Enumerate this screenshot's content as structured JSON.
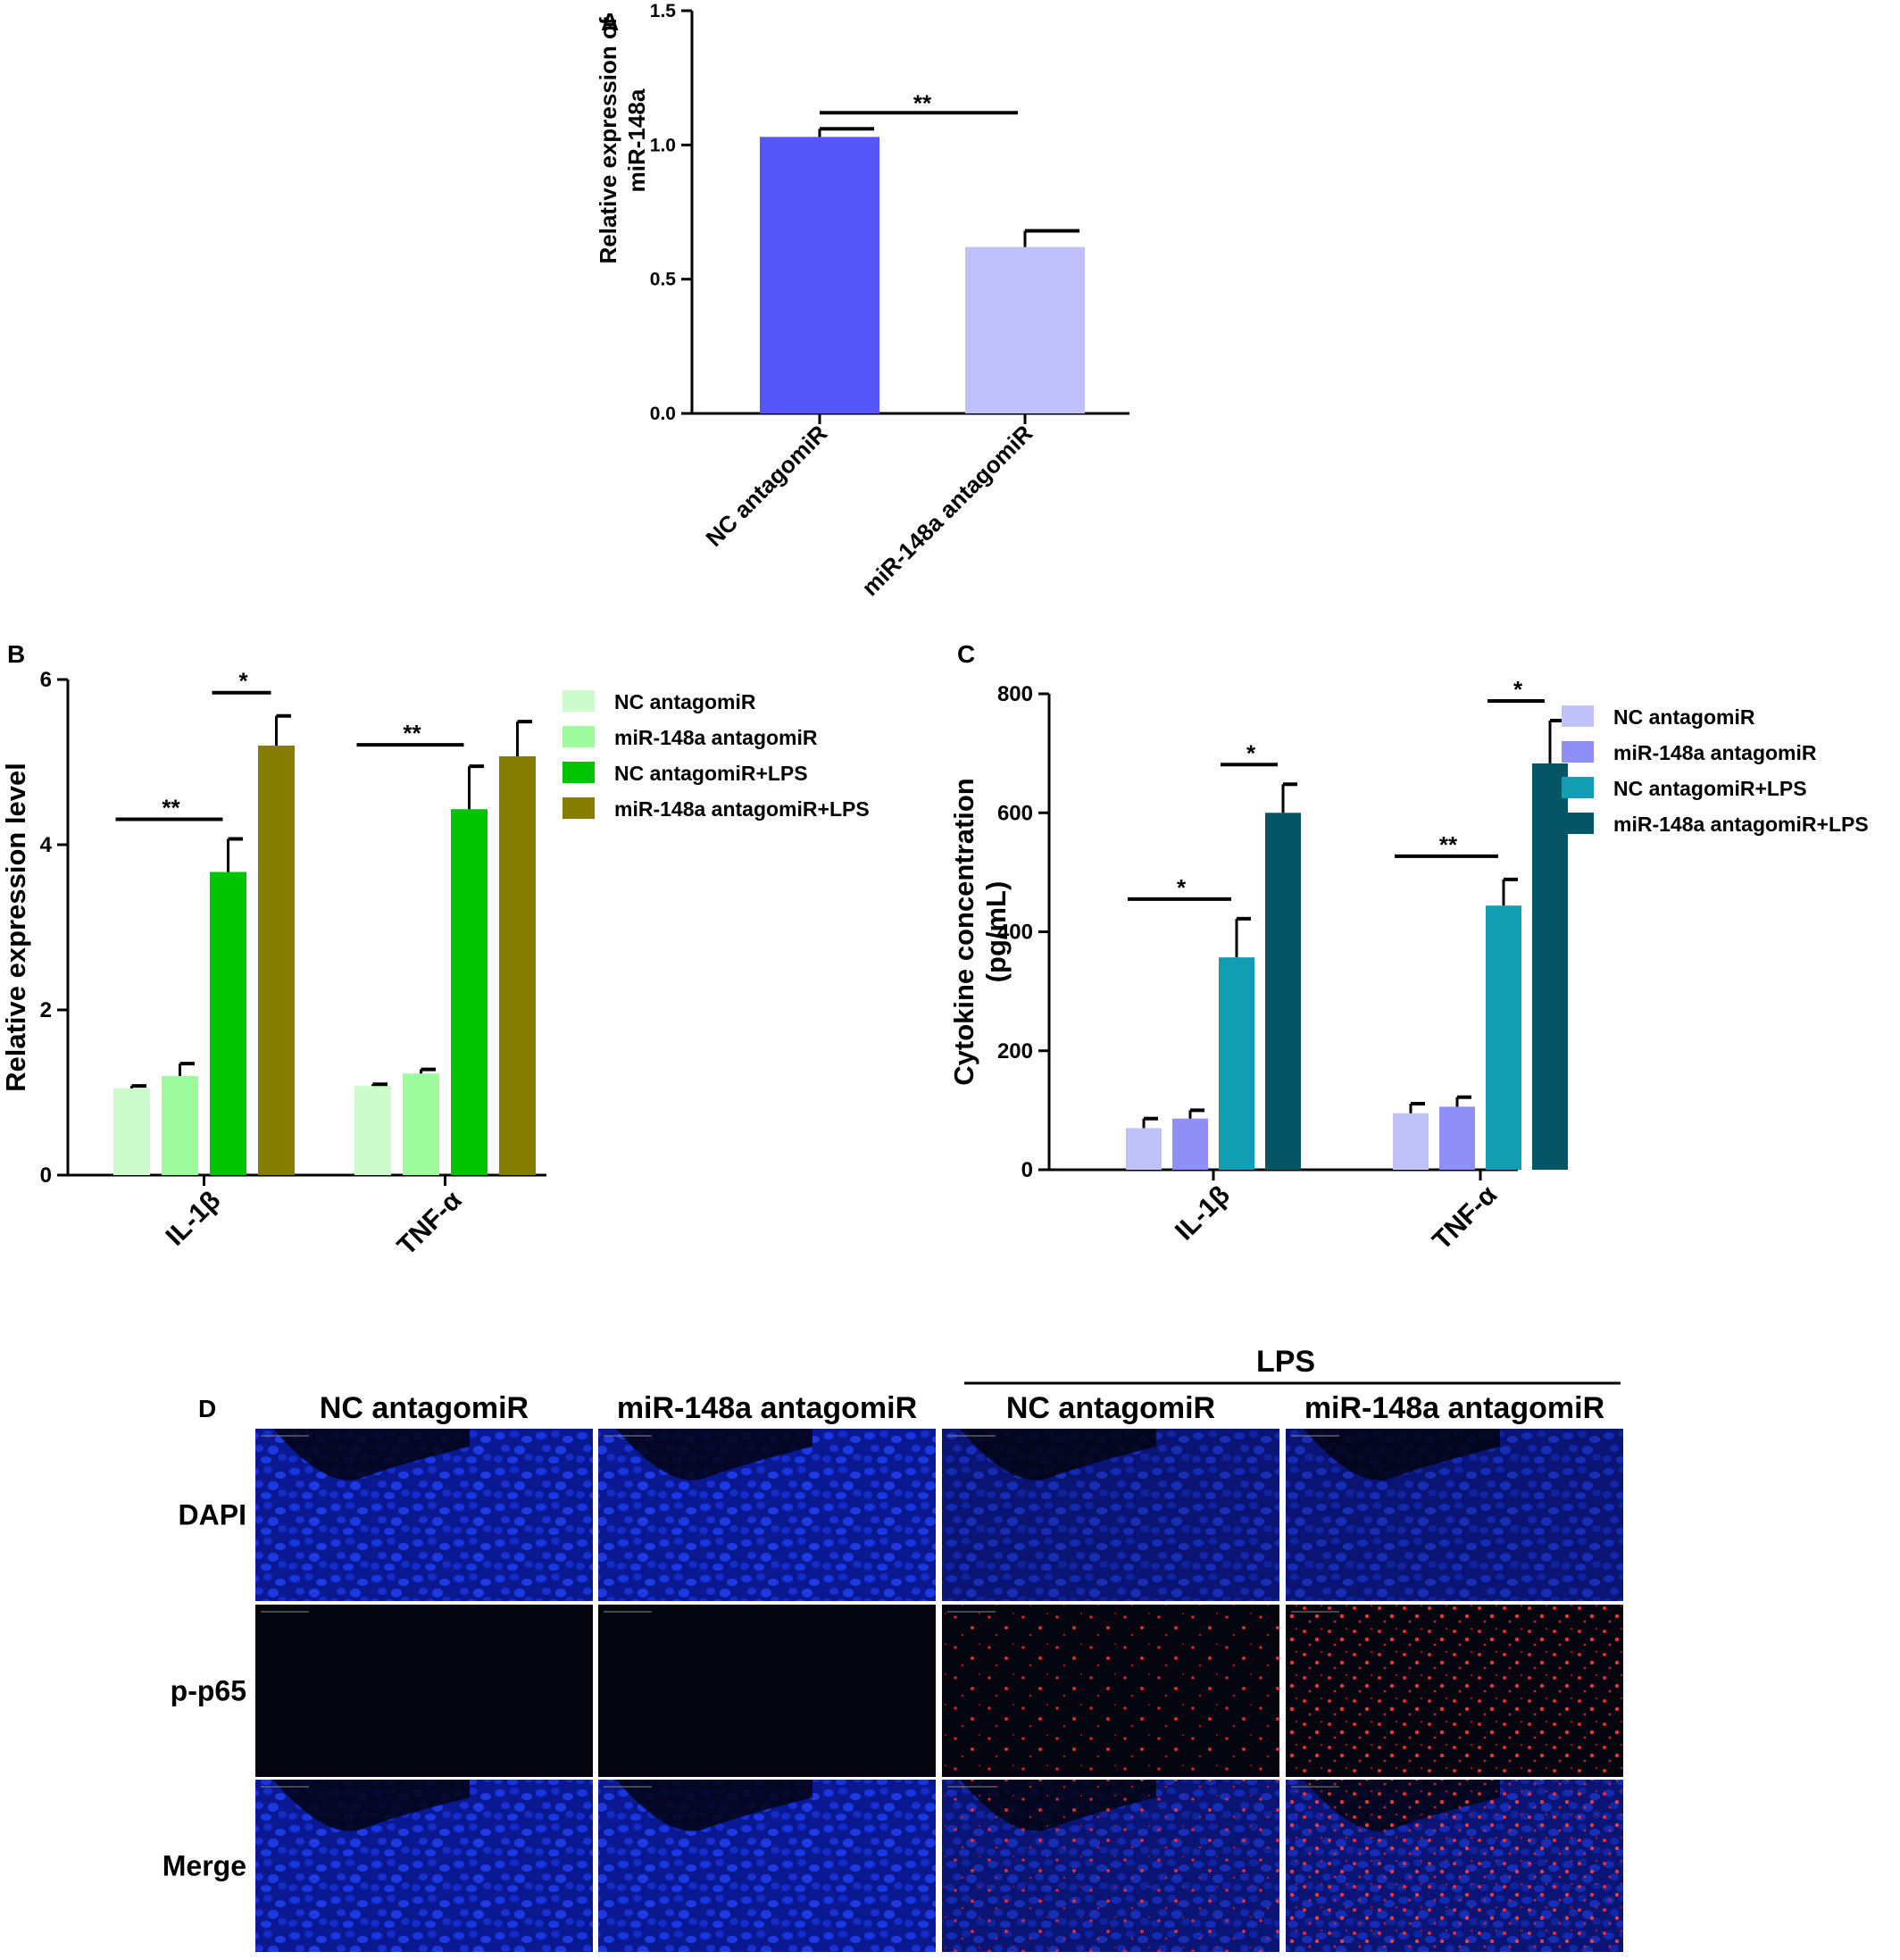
{
  "chart_data": [
    {
      "panel": "A",
      "type": "bar",
      "categories": [
        "NC antagomiR",
        "miR-148a antagomiR"
      ],
      "values": [
        1.03,
        0.62
      ],
      "errors": [
        0.03,
        0.06
      ],
      "colors": [
        "#5555fa",
        "#c0c0fc"
      ],
      "ylabel": [
        "Relative expression of",
        "miR-148a"
      ],
      "ylim": [
        0,
        1.5
      ],
      "yticks": [
        "0.0",
        "0.5",
        "1.0",
        "1.5"
      ],
      "significance": [
        {
          "from": 0,
          "to": 1,
          "label": "**"
        }
      ]
    },
    {
      "panel": "B",
      "type": "bar",
      "categories": [
        "IL-1β",
        "TNF-α"
      ],
      "series": [
        {
          "name": "NC antagomiR",
          "values": [
            1.05,
            1.08
          ],
          "errors": [
            0.03,
            0.02
          ],
          "color": "#ccfccc"
        },
        {
          "name": "miR-148a antagomiR",
          "values": [
            1.2,
            1.23
          ],
          "errors": [
            0.15,
            0.05
          ],
          "color": "#9efc9e"
        },
        {
          "name": "NC antagomiR+LPS",
          "values": [
            3.67,
            4.43
          ],
          "errors": [
            0.4,
            0.52
          ],
          "color": "#00c400"
        },
        {
          "name": "miR-148a antagomiR+LPS",
          "values": [
            5.2,
            5.07
          ],
          "errors": [
            0.36,
            0.42
          ],
          "color": "#847d00"
        }
      ],
      "ylabel": "Relative expression level",
      "ylim": [
        0,
        6
      ],
      "yticks": [
        "0",
        "2",
        "4",
        "6"
      ],
      "significance": [
        {
          "category": 0,
          "from": 0,
          "to": 2,
          "label": "**"
        },
        {
          "category": 0,
          "from": 2,
          "to": 3,
          "label": "*"
        },
        {
          "category": 1,
          "from": 0,
          "to": 2,
          "label": "**"
        }
      ]
    },
    {
      "panel": "C",
      "type": "bar",
      "categories": [
        "IL-1β",
        "TNF-α"
      ],
      "series": [
        {
          "name": "NC antagomiR",
          "values": [
            70,
            95
          ],
          "errors": [
            16,
            16
          ],
          "color": "#c2c2fb"
        },
        {
          "name": "miR-148a antagomiR",
          "values": [
            86,
            106
          ],
          "errors": [
            14,
            16
          ],
          "color": "#8f8ff7"
        },
        {
          "name": "NC antagomiR+LPS",
          "values": [
            357,
            444
          ],
          "errors": [
            65,
            44
          ],
          "color": "#139db3"
        },
        {
          "name": "miR-148a antagomiR+LPS",
          "values": [
            600,
            683
          ],
          "errors": [
            48,
            72
          ],
          "color": "#055567"
        }
      ],
      "ylabel": [
        "Cytokine concentration",
        "(pg/mL)"
      ],
      "ylim": [
        0,
        800
      ],
      "yticks": [
        "0",
        "200",
        "400",
        "600",
        "800"
      ],
      "significance": [
        {
          "category": 0,
          "from": 0,
          "to": 2,
          "label": "*"
        },
        {
          "category": 0,
          "from": 2,
          "to": 3,
          "label": "*"
        },
        {
          "category": 1,
          "from": 0,
          "to": 2,
          "label": "**"
        },
        {
          "category": 1,
          "from": 2,
          "to": 3,
          "label": "*"
        }
      ]
    }
  ],
  "panel_labels": {
    "a": "A",
    "b": "B",
    "c": "C",
    "d": "D"
  },
  "panel_d": {
    "group_label": "LPS",
    "columns": [
      "NC antagomiR",
      "miR-148a antagomiR",
      "NC antagomiR",
      "miR-148a antagomiR"
    ],
    "rows": [
      "DAPI",
      "p-p65",
      "Merge"
    ]
  }
}
